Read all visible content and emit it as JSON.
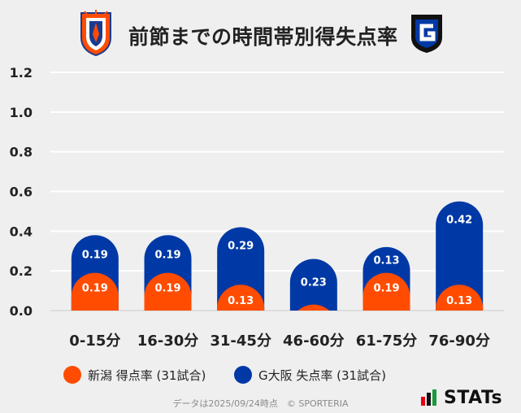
{
  "header": {
    "title": "前節までの時間帯別得失点率"
  },
  "legend": {
    "home": "新潟 得点率 (31試合)",
    "away": "G大阪 失点率 (31試合)"
  },
  "footer": {
    "note": "データは2025/09/24時点　© SPORTERIA",
    "brand": "STATs"
  },
  "colors": {
    "home": "#ff4c00",
    "away": "#0039a6",
    "background": "#efefef",
    "grid": "#ffffff"
  },
  "chart_data": {
    "type": "bar",
    "stacked": true,
    "title": "前節までの時間帯別得失点率",
    "categories": [
      "0-15分",
      "16-30分",
      "31-45分",
      "46-60分",
      "61-75分",
      "76-90分"
    ],
    "series": [
      {
        "name": "新潟 得点率 (31試合)",
        "values": [
          0.19,
          0.19,
          0.13,
          0.03,
          0.19,
          0.13
        ],
        "labels": [
          "0.19",
          "0.19",
          "0.13",
          "",
          "0.19",
          "0.13"
        ]
      },
      {
        "name": "G大阪 失点率 (31試合)",
        "values": [
          0.19,
          0.19,
          0.29,
          0.23,
          0.13,
          0.42
        ],
        "labels": [
          "0.19",
          "0.19",
          "0.29",
          "0.23",
          "0.13",
          "0.42"
        ]
      }
    ],
    "ylim": [
      0,
      1.2
    ],
    "yticks": [
      "0.0",
      "0.2",
      "0.4",
      "0.6",
      "0.8",
      "1.0",
      "1.2"
    ],
    "grid": true,
    "legend": "bottom"
  }
}
